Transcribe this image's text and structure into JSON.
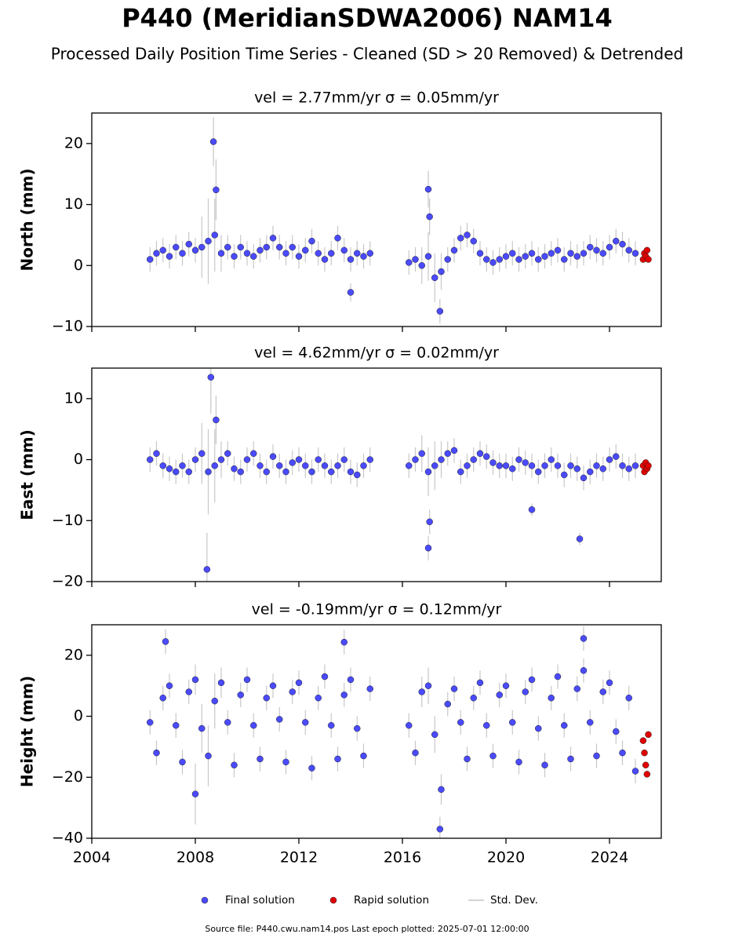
{
  "title": "P440 (MeridianSDWA2006) NAM14",
  "subtitle": "Processed Daily Position Time Series - Cleaned (SD > 20 Removed) & Detrended",
  "source": "Source file: P440.cwu.nam14.pos  Last epoch plotted: 2025-07-01 12:00:00",
  "chart_data": [
    {
      "type": "scatter",
      "title": "vel = 2.77mm/yr   σ = 0.05mm/yr",
      "y_label": "North (mm)",
      "xlim": [
        2004,
        2026
      ],
      "xticks": [
        2004,
        2008,
        2012,
        2016,
        2020,
        2024
      ],
      "show_xtick_labels": false,
      "ylim": [
        -10,
        25
      ],
      "yticks": [
        {
          "value": -10,
          "label": "−10"
        },
        0,
        10,
        20
      ],
      "series": [
        {
          "name": "Final solution",
          "color": "#4a4aff",
          "x": [
            2006.25,
            2006.5,
            2006.75,
            2007,
            2007.25,
            2007.5,
            2007.75,
            2008,
            2008.25,
            2008.5,
            2008.75,
            2009,
            2009.25,
            2009.5,
            2009.75,
            2010,
            2010.25,
            2010.5,
            2010.75,
            2011,
            2011.25,
            2011.5,
            2011.75,
            2012,
            2012.25,
            2012.5,
            2012.75,
            2013,
            2013.25,
            2013.5,
            2013.75,
            2014,
            2014.25,
            2014.5,
            2014.75,
            2016.25,
            2016.5,
            2016.75,
            2017,
            2017.25,
            2017.5,
            2017.75,
            2018,
            2018.25,
            2018.5,
            2018.75,
            2019,
            2019.25,
            2019.5,
            2019.75,
            2020,
            2020.25,
            2020.5,
            2020.75,
            2021,
            2021.25,
            2021.5,
            2021.75,
            2022,
            2022.25,
            2022.5,
            2022.75,
            2023,
            2023.25,
            2023.5,
            2023.75,
            2024,
            2024.25,
            2024.5,
            2024.75,
            2025,
            2008.7,
            2008.8,
            2017,
            2017.05,
            2017.45,
            2014
          ],
          "values": [
            1,
            2,
            2.5,
            1.5,
            3,
            2,
            3.5,
            2.5,
            3,
            4,
            5,
            2,
            3,
            1.5,
            3,
            2,
            1.5,
            2.5,
            3,
            4.5,
            3,
            2,
            3,
            1.5,
            2.5,
            4,
            2,
            1,
            2,
            4.5,
            2.5,
            1,
            2,
            1.5,
            2,
            0.5,
            1,
            0,
            1.5,
            -2,
            -1,
            1,
            2.5,
            4.5,
            5,
            4,
            2,
            1,
            0.5,
            1,
            1.5,
            2,
            1,
            1.5,
            2,
            1,
            1.5,
            2,
            2.5,
            1,
            2,
            1.5,
            2,
            3,
            2.5,
            2,
            3,
            4,
            3.5,
            2.5,
            2,
            20.3,
            12.4,
            12.5,
            8,
            -7.5,
            -4.4
          ],
          "errors": [
            2,
            2,
            2,
            2,
            2,
            2,
            2,
            2,
            5,
            7,
            6,
            3,
            2,
            2,
            2,
            2,
            2,
            2,
            2,
            2,
            2,
            2,
            2,
            2,
            2,
            2,
            2,
            2,
            2,
            2,
            2,
            2,
            2,
            2,
            2,
            2,
            2,
            3,
            4,
            4,
            3,
            2,
            2,
            2,
            2,
            2,
            2,
            2,
            2,
            2,
            2,
            2,
            2,
            2,
            2,
            2,
            2,
            2,
            2,
            2,
            2,
            2,
            2,
            2,
            2,
            2,
            2,
            2,
            2,
            2,
            2,
            4,
            5,
            3,
            3,
            2,
            1.5
          ]
        },
        {
          "name": "Rapid solution",
          "color": "#e00000",
          "x": [
            2025.3,
            2025.35,
            2025.4,
            2025.45,
            2025.5
          ],
          "values": [
            1,
            2,
            1.5,
            2.5,
            1
          ]
        }
      ]
    },
    {
      "type": "scatter",
      "title": "vel = 4.62mm/yr   σ = 0.02mm/yr",
      "y_label": "East (mm)",
      "xlim": [
        2004,
        2026
      ],
      "xticks": [
        2004,
        2008,
        2012,
        2016,
        2020,
        2024
      ],
      "show_xtick_labels": false,
      "ylim": [
        -20,
        15
      ],
      "yticks": [
        {
          "value": -20,
          "label": "−20"
        },
        {
          "value": -10,
          "label": "−10"
        },
        0,
        10
      ],
      "series": [
        {
          "name": "Final solution",
          "color": "#4a4aff",
          "x": [
            2006.25,
            2006.5,
            2006.75,
            2007,
            2007.25,
            2007.5,
            2007.75,
            2008,
            2008.25,
            2008.5,
            2008.75,
            2009,
            2009.25,
            2009.5,
            2009.75,
            2010,
            2010.25,
            2010.5,
            2010.75,
            2011,
            2011.25,
            2011.5,
            2011.75,
            2012,
            2012.25,
            2012.5,
            2012.75,
            2013,
            2013.25,
            2013.5,
            2013.75,
            2014,
            2014.25,
            2014.5,
            2014.75,
            2016.25,
            2016.5,
            2016.75,
            2017,
            2017.25,
            2017.5,
            2017.75,
            2018,
            2018.25,
            2018.5,
            2018.75,
            2019,
            2019.25,
            2019.5,
            2019.75,
            2020,
            2020.25,
            2020.5,
            2020.75,
            2021,
            2021.25,
            2021.5,
            2021.75,
            2022,
            2022.25,
            2022.5,
            2022.75,
            2023,
            2023.25,
            2023.5,
            2023.75,
            2024,
            2024.25,
            2024.5,
            2024.75,
            2025,
            2008.6,
            2008.45,
            2017,
            2017.05,
            2021,
            2022.85,
            2008.8
          ],
          "values": [
            0,
            1,
            -1,
            -1.5,
            -2,
            -1,
            -2,
            0,
            1,
            -2,
            -1,
            0,
            1,
            -1.5,
            -2,
            0,
            1,
            -1,
            -2,
            0.5,
            -1,
            -2,
            -0.5,
            0,
            -1,
            -2,
            0,
            -1,
            -2,
            -1,
            0,
            -2,
            -2.5,
            -1,
            0,
            -1,
            0,
            1,
            -2,
            -1,
            0,
            1,
            1.5,
            -2,
            -1,
            0,
            1,
            0.5,
            -0.5,
            -1,
            -1,
            -1.5,
            0,
            -0.5,
            -1,
            -2,
            -1,
            0,
            -1,
            -2.5,
            -1,
            -1.5,
            -3,
            -2,
            -1,
            -1.5,
            0,
            0.5,
            -1,
            -1.5,
            -1,
            13.5,
            -18,
            -14.5,
            -10.2,
            -8.2,
            -13,
            6.5
          ],
          "errors": [
            2,
            2,
            2,
            2,
            2,
            2,
            2,
            2,
            5,
            7,
            6,
            3,
            2,
            2,
            2,
            2,
            2,
            2,
            2,
            2,
            2,
            2,
            2,
            2,
            2,
            2,
            2,
            2,
            2,
            2,
            2,
            2,
            2,
            2,
            2,
            2,
            2,
            3,
            4,
            4,
            3,
            2,
            2,
            2,
            2,
            2,
            2,
            2,
            2,
            2,
            2,
            2,
            2,
            2,
            2,
            2,
            2,
            2,
            2,
            2,
            2,
            2,
            2,
            2,
            2,
            2,
            2,
            2,
            2,
            2,
            2,
            6,
            6,
            2,
            2,
            1,
            1,
            4
          ]
        },
        {
          "name": "Rapid solution",
          "color": "#e00000",
          "x": [
            2025.3,
            2025.35,
            2025.4,
            2025.45,
            2025.5
          ],
          "values": [
            -1,
            -2,
            -0.5,
            -1.5,
            -1
          ]
        }
      ]
    },
    {
      "type": "scatter",
      "title": "vel = -0.19mm/yr   σ = 0.12mm/yr",
      "y_label": "Height (mm)",
      "xlim": [
        2004,
        2026
      ],
      "xticks": [
        2004,
        2008,
        2012,
        2016,
        2020,
        2024
      ],
      "show_xtick_labels": true,
      "ylim": [
        -40,
        30
      ],
      "yticks": [
        {
          "value": -40,
          "label": "−40"
        },
        {
          "value": -20,
          "label": "−20"
        },
        0,
        20
      ],
      "error_name": "Std. Dev.",
      "series": [
        {
          "name": "Final solution",
          "color": "#4a4aff",
          "x": [
            2006.25,
            2006.5,
            2006.75,
            2007,
            2007.25,
            2007.5,
            2007.75,
            2008,
            2008.25,
            2008.5,
            2008.75,
            2009,
            2009.25,
            2009.5,
            2009.75,
            2010,
            2010.25,
            2010.5,
            2010.75,
            2011,
            2011.25,
            2011.5,
            2011.75,
            2012,
            2012.25,
            2012.5,
            2012.75,
            2013,
            2013.25,
            2013.5,
            2013.75,
            2014,
            2014.25,
            2014.5,
            2014.75,
            2016.25,
            2016.5,
            2016.75,
            2017,
            2017.25,
            2017.5,
            2017.75,
            2018,
            2018.25,
            2018.5,
            2018.75,
            2019,
            2019.25,
            2019.5,
            2019.75,
            2020,
            2020.25,
            2020.5,
            2020.75,
            2021,
            2021.25,
            2021.5,
            2021.75,
            2022,
            2022.25,
            2022.5,
            2022.75,
            2023,
            2023.25,
            2023.5,
            2023.75,
            2024,
            2024.25,
            2024.5,
            2024.75,
            2025,
            2017.45,
            2023,
            2006.85,
            2008,
            2013.75
          ],
          "values": [
            -2,
            -12,
            6,
            10,
            -3,
            -15,
            8,
            12,
            -4,
            -13,
            5,
            11,
            -2,
            -16,
            7,
            12,
            -3,
            -14,
            6,
            10,
            -1,
            -15,
            8,
            11,
            -2,
            -17,
            6,
            13,
            -3,
            -14,
            7,
            12,
            -4,
            -13,
            9,
            -3,
            -12,
            8,
            10,
            -6,
            -24,
            4,
            9,
            -2,
            -14,
            6,
            11,
            -3,
            -13,
            7,
            10,
            -2,
            -15,
            8,
            12,
            -4,
            -16,
            6,
            13,
            -3,
            -14,
            9,
            15,
            -2,
            -13,
            8,
            11,
            -5,
            -12,
            6,
            -18,
            -37,
            25.5,
            24.5,
            -25.5,
            24.3
          ],
          "errors": [
            4,
            4,
            4,
            4,
            4,
            4,
            4,
            5,
            8,
            10,
            9,
            5,
            4,
            4,
            4,
            4,
            4,
            4,
            4,
            4,
            4,
            4,
            4,
            4,
            4,
            4,
            4,
            4,
            4,
            4,
            4,
            4,
            4,
            4,
            4,
            4,
            4,
            5,
            6,
            6,
            5,
            4,
            4,
            4,
            4,
            4,
            4,
            4,
            4,
            4,
            4,
            4,
            4,
            4,
            4,
            4,
            4,
            4,
            4,
            4,
            4,
            4,
            4,
            4,
            4,
            4,
            4,
            4,
            4,
            4,
            4,
            4,
            4,
            4,
            10,
            4
          ]
        },
        {
          "name": "Rapid solution",
          "color": "#e00000",
          "x": [
            2025.3,
            2025.35,
            2025.4,
            2025.45,
            2025.5
          ],
          "values": [
            -8,
            -12,
            -16,
            -19,
            -6
          ]
        }
      ]
    }
  ]
}
